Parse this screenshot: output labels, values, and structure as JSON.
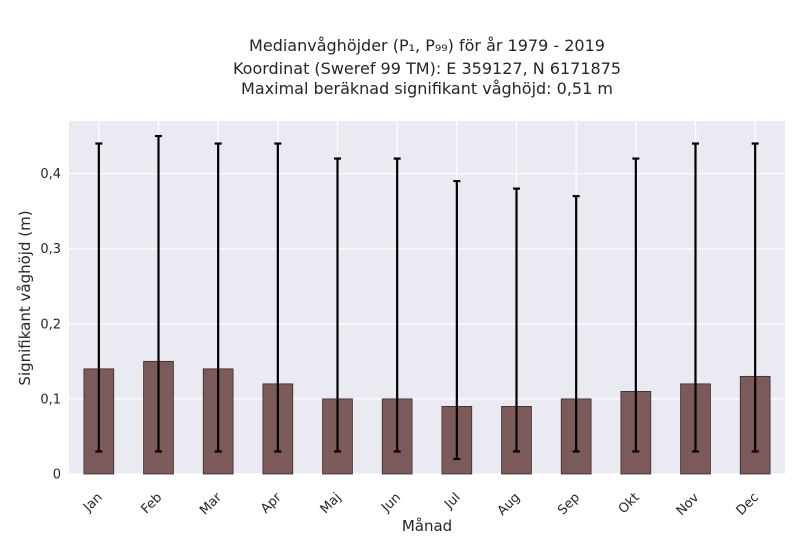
{
  "chart_data": {
    "type": "bar",
    "title_lines": [
      "Medianvåghöjder (P₁, P₉₉) för år 1979 - 2019",
      "Koordinat (Sweref 99 TM): E 359127, N 6171875",
      "Maximal beräknad signifikant våghöjd: 0,51 m"
    ],
    "xlabel": "Månad",
    "ylabel": "Signifikant våghöjd (m)",
    "categories": [
      "Jan",
      "Feb",
      "Mar",
      "Apr",
      "Maj",
      "Jun",
      "Jul",
      "Aug",
      "Sep",
      "Okt",
      "Nov",
      "Dec"
    ],
    "values": [
      0.14,
      0.15,
      0.14,
      0.12,
      0.1,
      0.1,
      0.09,
      0.09,
      0.1,
      0.11,
      0.12,
      0.13
    ],
    "p1": [
      0.03,
      0.03,
      0.03,
      0.03,
      0.03,
      0.03,
      0.02,
      0.03,
      0.03,
      0.03,
      0.03,
      0.03
    ],
    "p99": [
      0.44,
      0.45,
      0.44,
      0.44,
      0.42,
      0.42,
      0.39,
      0.38,
      0.37,
      0.42,
      0.44,
      0.44
    ],
    "ylim": [
      0,
      0.47
    ],
    "yticks": [
      0,
      0.1,
      0.2,
      0.3,
      0.4
    ],
    "ytick_labels": [
      "0",
      "0,1",
      "0,2",
      "0,3",
      "0,4"
    ],
    "grid": true,
    "colors": {
      "bar": "#7d5a5a",
      "bar_edge": "#3a2a2a",
      "error": "#000000",
      "plot_bg": "#eaeaf2",
      "grid": "#ffffff"
    }
  }
}
